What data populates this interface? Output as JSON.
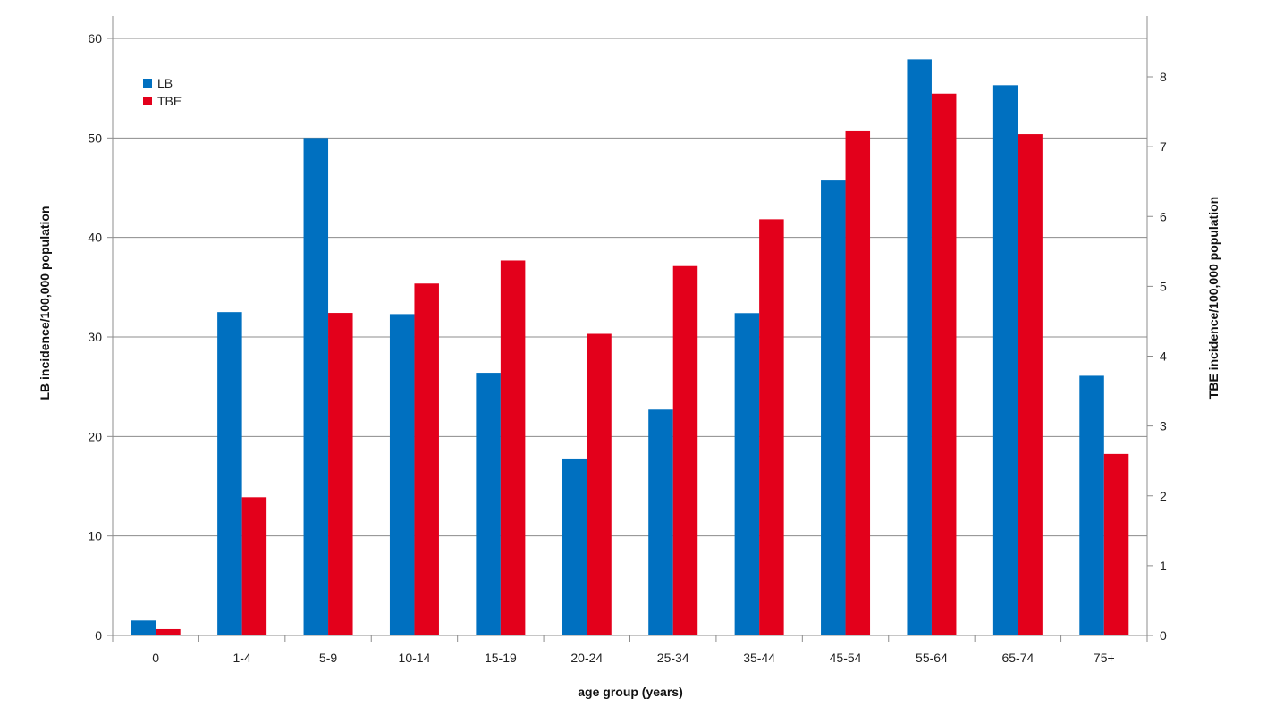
{
  "chart_data": {
    "type": "bar",
    "categories": [
      "0",
      "1-4",
      "5-9",
      "10-14",
      "15-19",
      "20-24",
      "25-34",
      "35-44",
      "45-54",
      "55-64",
      "65-74",
      "75+"
    ],
    "series": [
      {
        "name": "LB",
        "axis": "left",
        "color": "#0070c0",
        "values": [
          1.5,
          32.5,
          50.0,
          32.3,
          26.4,
          17.7,
          22.7,
          32.4,
          45.8,
          57.9,
          55.3,
          26.1
        ]
      },
      {
        "name": "TBE",
        "axis": "right",
        "color": "#e3001b",
        "values": [
          0.09,
          1.98,
          4.62,
          5.04,
          5.37,
          4.32,
          5.29,
          5.96,
          7.22,
          7.76,
          7.18,
          2.6
        ]
      }
    ],
    "xlabel": "age group (years)",
    "ylabel": "LB incidence/100,000 population",
    "y2label": "TBE incidence/100,000 population",
    "ylim": [
      0,
      60
    ],
    "yticks": [
      "0",
      "10",
      "20",
      "30",
      "40",
      "50",
      "60"
    ],
    "y2lim": [
      0,
      8
    ],
    "y2ticks": [
      "0",
      "1",
      "2",
      "3",
      "4",
      "5",
      "6",
      "7",
      "8"
    ],
    "grid": true,
    "legend_position": "top-left"
  }
}
